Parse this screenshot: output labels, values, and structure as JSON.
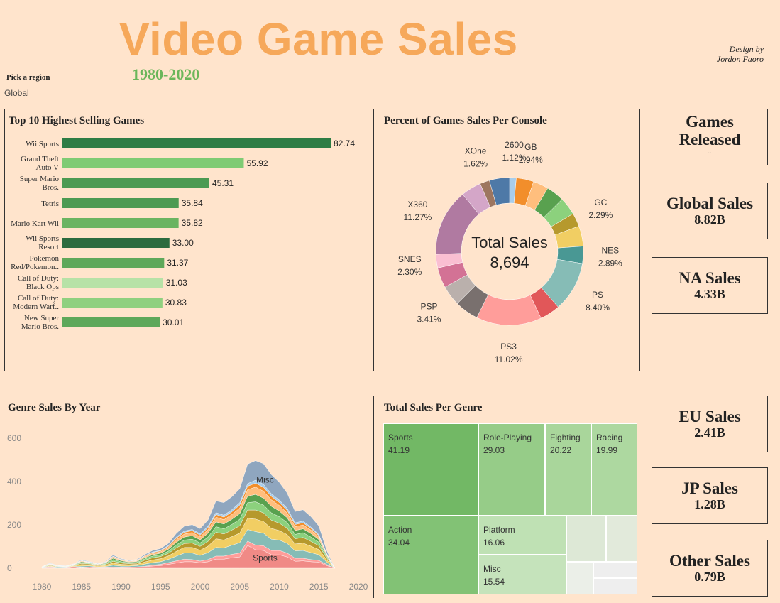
{
  "header": {
    "title": "Video Game Sales",
    "subtitle": "1980-2020",
    "credit_line1": "Design by",
    "credit_line2": "Jordon Faoro",
    "region_label": "Pick a region",
    "region_value": "Global"
  },
  "kpis": {
    "games_released": {
      "title_line1": "Games",
      "title_line2": "Released",
      "value": ".."
    },
    "global_sales": {
      "title": "Global Sales",
      "value": "8.82B"
    },
    "na_sales": {
      "title": "NA Sales",
      "value": "4.33B"
    },
    "eu_sales": {
      "title": "EU Sales",
      "value": "2.41B"
    },
    "jp_sales": {
      "title": "JP Sales",
      "value": "1.28B"
    },
    "other_sales": {
      "title": "Other Sales",
      "value": "0.79B"
    }
  },
  "colors": {
    "background": "#ffe4cc",
    "title": "#f6a85a",
    "subtitle": "#6bb65a"
  },
  "chart_data": [
    {
      "id": "top10",
      "type": "bar",
      "title": "Top 10 Highest Selling Games",
      "categories": [
        [
          "Wii Sports"
        ],
        [
          "Grand Theft",
          "Auto V"
        ],
        [
          "Super Mario",
          "Bros."
        ],
        [
          "Tetris"
        ],
        [
          "Mario Kart Wii"
        ],
        [
          "Wii Sports",
          "Resort"
        ],
        [
          "Pokemon",
          "Red/Pokemon.."
        ],
        [
          "Call of Duty:",
          "Black Ops"
        ],
        [
          "Call of Duty:",
          "Modern Warf.."
        ],
        [
          "New Super",
          "Mario Bros."
        ]
      ],
      "values": [
        82.74,
        55.92,
        45.31,
        35.84,
        35.82,
        33.0,
        31.37,
        31.03,
        30.83,
        30.01
      ],
      "value_labels": [
        "82.74",
        "55.92",
        "45.31",
        "35.84",
        "35.82",
        "33.00",
        "31.37",
        "31.03",
        "30.83",
        "30.01"
      ],
      "colors": [
        "#2e7d45",
        "#7fcb74",
        "#4c9a52",
        "#4c9a52",
        "#6ab461",
        "#2b6b3e",
        "#5ea85a",
        "#b7e2a7",
        "#8fd07f",
        "#5ea85a"
      ],
      "xlim": [
        0,
        84
      ]
    },
    {
      "id": "console_donut",
      "type": "pie",
      "title": "Percent of Games Sales Per Console",
      "center_label": "Total Sales",
      "center_value": "8,694",
      "slices": [
        {
          "name": "2600",
          "value": 1.12,
          "label": "1.12%",
          "color": "#a8cdeb"
        },
        {
          "name": "GB",
          "value": 2.94,
          "label": "2.94%",
          "color": "#f28e2b"
        },
        {
          "name": "",
          "value": 2.6,
          "label": "",
          "color": "#ffbe7d"
        },
        {
          "name": "",
          "value": 3.0,
          "label": "",
          "color": "#59a14f"
        },
        {
          "name": "",
          "value": 3.0,
          "label": "",
          "color": "#8cd17d"
        },
        {
          "name": "GC",
          "value": 2.29,
          "label": "2.29%",
          "color": "#b6992d"
        },
        {
          "name": "",
          "value": 3.4,
          "label": "",
          "color": "#f1ce63"
        },
        {
          "name": "NES",
          "value": 2.89,
          "label": "2.89%",
          "color": "#499894"
        },
        {
          "name": "PS",
          "value": 8.4,
          "label": "8.40%",
          "color": "#86bcb6"
        },
        {
          "name": "",
          "value": 3.4,
          "label": "",
          "color": "#e15759"
        },
        {
          "name": "PS3",
          "value": 11.02,
          "label": "11.02%",
          "color": "#ff9d9a"
        },
        {
          "name": "",
          "value": 4.0,
          "label": "",
          "color": "#79706e"
        },
        {
          "name": "PSP",
          "value": 3.41,
          "label": "3.41%",
          "color": "#bab0ac"
        },
        {
          "name": "",
          "value": 3.4,
          "label": "",
          "color": "#d37295"
        },
        {
          "name": "SNES",
          "value": 2.3,
          "label": "2.30%",
          "color": "#fabfd2"
        },
        {
          "name": "X360",
          "value": 11.27,
          "label": "11.27%",
          "color": "#b07aa1"
        },
        {
          "name": "",
          "value": 3.4,
          "label": "",
          "color": "#d4a6c8"
        },
        {
          "name": "XOne",
          "value": 1.62,
          "label": "1.62%",
          "color": "#9d7660"
        },
        {
          "name": "",
          "value": 3.4,
          "label": "",
          "color": "#4e79a7"
        }
      ]
    },
    {
      "id": "genre_area",
      "type": "area",
      "title": "Genre Sales By Year",
      "x": [
        1980,
        1981,
        1982,
        1983,
        1984,
        1985,
        1986,
        1987,
        1988,
        1989,
        1990,
        1991,
        1992,
        1993,
        1994,
        1995,
        1996,
        1997,
        1998,
        1999,
        2000,
        2001,
        2002,
        2003,
        2004,
        2005,
        2006,
        2007,
        2008,
        2009,
        2010,
        2011,
        2012,
        2013,
        2014,
        2015,
        2016,
        2017
      ],
      "xticks": [
        1980,
        1985,
        1990,
        1995,
        2000,
        2005,
        2010,
        2015,
        2020
      ],
      "yticks": [
        0,
        200,
        400,
        600
      ],
      "xlim": [
        1979,
        2021
      ],
      "ylim": [
        -15,
        680
      ],
      "annotations": [
        {
          "text": "Misc",
          "x": 2008.2,
          "y": 395
        },
        {
          "text": "Sports",
          "x": 2008.2,
          "y": 35
        }
      ],
      "series": [
        {
          "name": "Sports",
          "color": "#f08a86",
          "values": [
            1,
            3,
            1,
            1,
            5,
            1,
            4,
            2,
            2,
            3,
            2,
            3,
            4,
            6,
            10,
            12,
            18,
            24,
            30,
            30,
            25,
            30,
            42,
            42,
            48,
            52,
            105,
            85,
            82,
            62,
            62,
            52,
            32,
            34,
            30,
            28,
            12,
            0
          ]
        },
        {
          "name": "",
          "color": "#ff9d9a",
          "values": [
            0,
            1,
            0,
            1,
            0,
            1,
            1,
            0,
            1,
            1,
            1,
            2,
            2,
            3,
            4,
            6,
            8,
            10,
            12,
            10,
            8,
            10,
            14,
            14,
            16,
            18,
            20,
            22,
            22,
            20,
            20,
            18,
            14,
            12,
            10,
            8,
            5,
            0
          ]
        },
        {
          "name": "",
          "color": "#86bcb6",
          "values": [
            1,
            4,
            3,
            2,
            3,
            8,
            6,
            4,
            5,
            10,
            7,
            5,
            6,
            10,
            12,
            12,
            15,
            22,
            28,
            30,
            26,
            32,
            40,
            38,
            42,
            48,
            54,
            62,
            58,
            52,
            48,
            45,
            34,
            36,
            32,
            26,
            12,
            0
          ]
        },
        {
          "name": "",
          "color": "#f1ce63",
          "values": [
            1,
            3,
            2,
            2,
            3,
            7,
            5,
            4,
            5,
            10,
            8,
            6,
            6,
            10,
            12,
            14,
            16,
            22,
            26,
            26,
            24,
            30,
            40,
            36,
            40,
            44,
            52,
            58,
            54,
            50,
            44,
            40,
            32,
            34,
            30,
            24,
            10,
            0
          ]
        },
        {
          "name": "",
          "color": "#b6992d",
          "values": [
            1,
            3,
            2,
            1,
            2,
            5,
            4,
            3,
            4,
            8,
            6,
            5,
            5,
            8,
            10,
            10,
            12,
            16,
            18,
            20,
            18,
            22,
            30,
            28,
            30,
            34,
            38,
            42,
            40,
            38,
            34,
            30,
            24,
            26,
            22,
            18,
            8,
            0
          ]
        },
        {
          "name": "",
          "color": "#8cd17d",
          "values": [
            1,
            2,
            1,
            1,
            2,
            4,
            3,
            2,
            3,
            8,
            6,
            4,
            4,
            6,
            8,
            8,
            10,
            14,
            16,
            18,
            16,
            20,
            26,
            24,
            26,
            30,
            34,
            38,
            36,
            34,
            30,
            26,
            20,
            22,
            20,
            16,
            6,
            0
          ]
        },
        {
          "name": "",
          "color": "#59a14f",
          "values": [
            1,
            2,
            1,
            1,
            1,
            4,
            2,
            2,
            3,
            6,
            5,
            3,
            4,
            5,
            6,
            7,
            9,
            12,
            14,
            16,
            14,
            18,
            22,
            22,
            24,
            26,
            30,
            34,
            32,
            30,
            26,
            22,
            18,
            18,
            16,
            12,
            5,
            0
          ]
        },
        {
          "name": "",
          "color": "#ffbe7d",
          "values": [
            0,
            2,
            1,
            1,
            1,
            3,
            2,
            2,
            2,
            5,
            3,
            3,
            3,
            5,
            6,
            7,
            8,
            12,
            14,
            15,
            14,
            16,
            22,
            20,
            22,
            26,
            30,
            34,
            32,
            30,
            26,
            22,
            18,
            18,
            16,
            12,
            5,
            0
          ]
        },
        {
          "name": "",
          "color": "#f28e2b",
          "values": [
            0,
            1,
            1,
            0,
            1,
            2,
            1,
            1,
            1,
            3,
            2,
            2,
            2,
            3,
            4,
            4,
            5,
            7,
            8,
            8,
            8,
            10,
            12,
            12,
            12,
            14,
            16,
            18,
            18,
            16,
            14,
            12,
            10,
            10,
            8,
            6,
            3,
            0
          ]
        },
        {
          "name": "",
          "color": "#a8cdeb",
          "values": [
            0,
            1,
            0,
            0,
            1,
            1,
            1,
            1,
            1,
            2,
            1,
            1,
            1,
            2,
            3,
            3,
            4,
            5,
            6,
            6,
            6,
            7,
            9,
            9,
            10,
            11,
            12,
            14,
            14,
            12,
            11,
            10,
            8,
            8,
            6,
            5,
            2,
            0
          ]
        },
        {
          "name": "",
          "color": "#8fa6bf",
          "values": [
            0,
            2,
            1,
            1,
            1,
            3,
            2,
            2,
            2,
            5,
            3,
            3,
            3,
            5,
            7,
            8,
            10,
            17,
            22,
            22,
            24,
            28,
            54,
            58,
            60,
            64,
            90,
            90,
            95,
            88,
            82,
            70,
            52,
            52,
            48,
            40,
            14,
            0
          ]
        }
      ]
    },
    {
      "id": "genre_treemap",
      "type": "heatmap",
      "title": "Total Sales Per Genre",
      "cells": [
        {
          "name": "Sports",
          "value": "41.19",
          "color": "#72b865"
        },
        {
          "name": "Role-Playing",
          "value": "29.03",
          "color": "#96cc88"
        },
        {
          "name": "Fighting",
          "value": "20.22",
          "color": "#a9d69b"
        },
        {
          "name": "Racing",
          "value": "19.99",
          "color": "#add8a0"
        },
        {
          "name": "Action",
          "value": "34.04",
          "color": "#82c275"
        },
        {
          "name": "Platform",
          "value": "16.06",
          "color": "#bfe1b4"
        },
        {
          "name": "Misc",
          "value": "15.54",
          "color": "#c5e3bb"
        },
        {
          "name": "",
          "value": "",
          "color": "#dde8d6"
        },
        {
          "name": "",
          "value": "",
          "color": "#e2eadb"
        },
        {
          "name": "",
          "value": "",
          "color": "#ebefe8"
        },
        {
          "name": "",
          "value": "",
          "color": "#eeeeee"
        },
        {
          "name": "",
          "value": "",
          "color": "#eeeeee"
        }
      ]
    }
  ]
}
